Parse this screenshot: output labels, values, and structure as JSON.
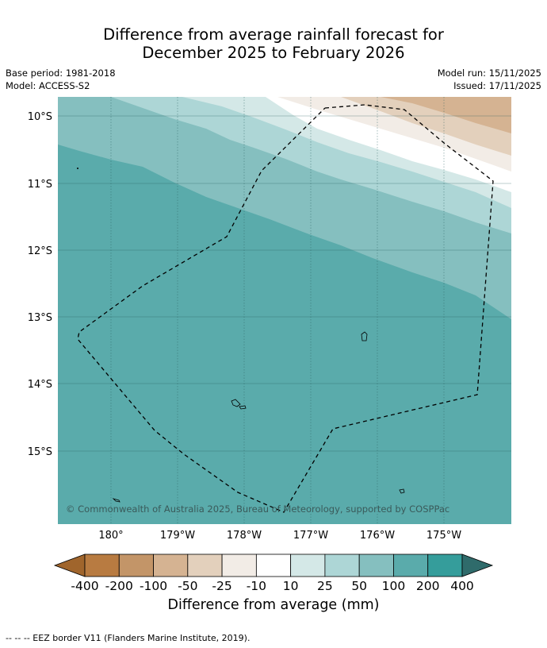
{
  "title": {
    "line1": "Difference from average rainfall forecast for",
    "line2": "December 2025 to February 2026"
  },
  "meta_left": {
    "base_period": "Base period: 1981-2018",
    "model": "Model: ACCESS-S2"
  },
  "meta_right": {
    "model_run": "Model run: 15/11/2025",
    "issued": "Issued: 17/11/2025"
  },
  "map": {
    "lat_labels": [
      "10°S",
      "11°S",
      "12°S",
      "13°S",
      "14°S",
      "15°S"
    ],
    "lon_labels": [
      "180°",
      "179°W",
      "178°W",
      "177°W",
      "176°W",
      "175°W"
    ],
    "copyright": "© Commonwealth of Australia 2025, Bureau of Meteorology, supported by COSPPac"
  },
  "colorbar": {
    "ticks": [
      "-400",
      "-200",
      "-100",
      "-50",
      "-25",
      "-10",
      "10",
      "25",
      "50",
      "100",
      "200",
      "400"
    ],
    "colors": [
      "#a0652c",
      "#b87b41",
      "#c39568",
      "#d5b392",
      "#e3d0bc",
      "#f2ece6",
      "#ffffff",
      "#d4e8e7",
      "#add6d6",
      "#85bfbf",
      "#5aabab",
      "#359d9b",
      "#2f6b6b"
    ],
    "label": "Difference from average (mm)"
  },
  "footnote": "-- -- -- EEZ border V11 (Flanders Marine Institute, 2019)."
}
